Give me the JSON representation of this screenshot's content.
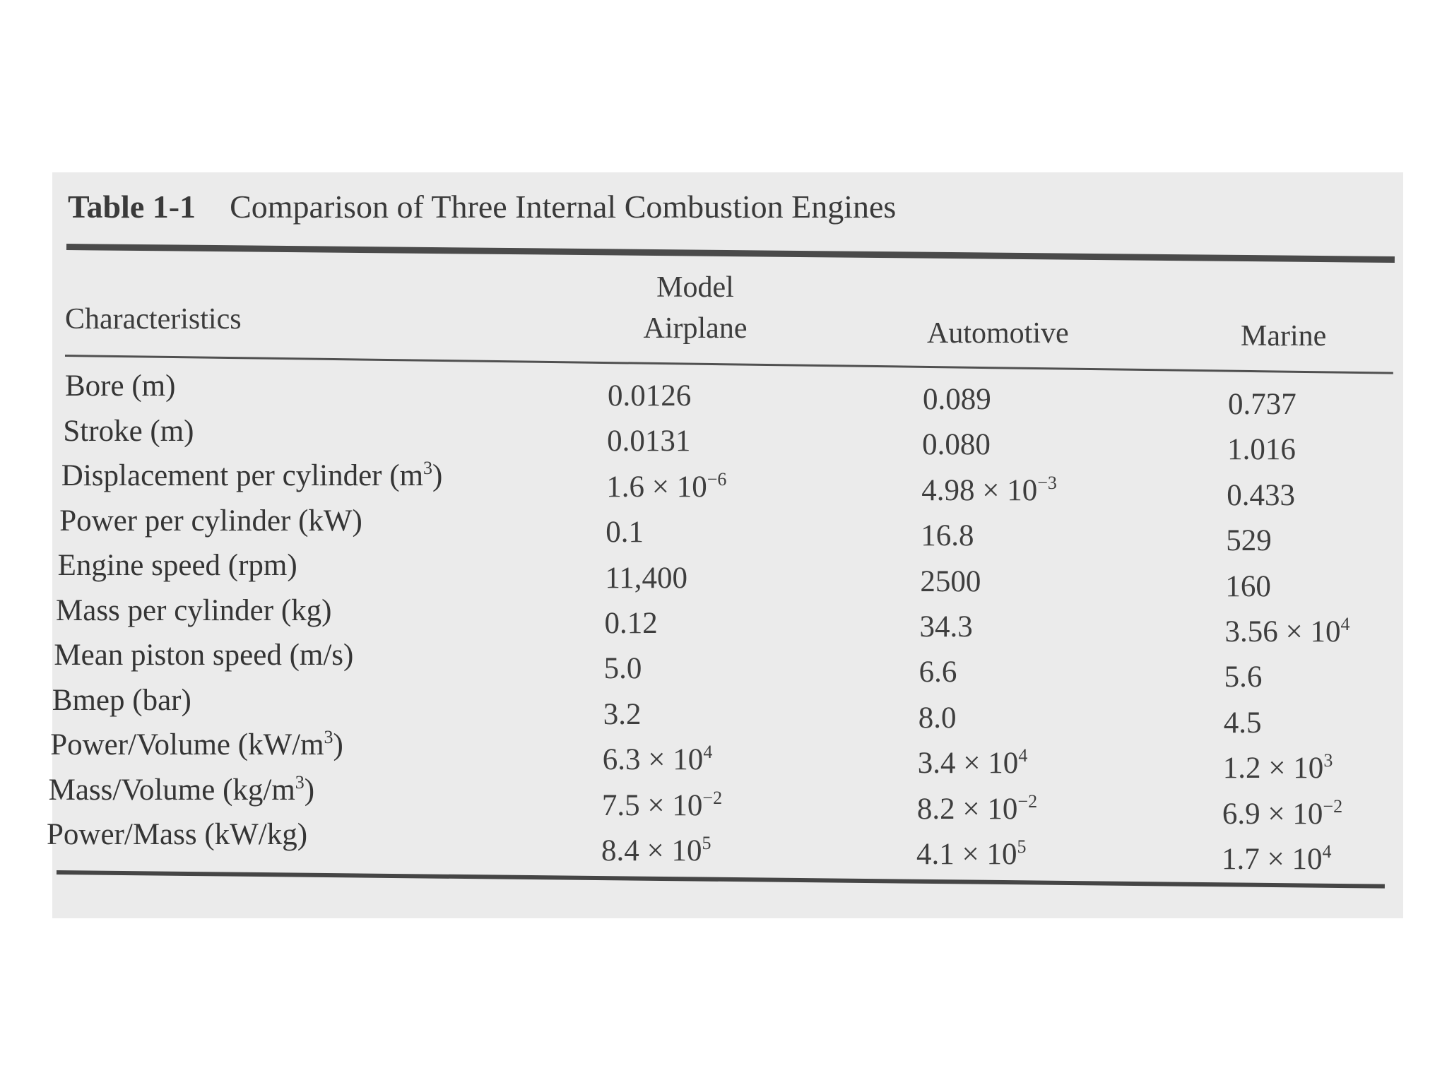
{
  "table": {
    "caption_label": "Table 1-1",
    "caption_title": "Comparison of Three Internal Combustion Engines",
    "headers": {
      "characteristics": "Characteristics",
      "model_airplane_line1": "Model",
      "model_airplane_line2": "Airplane",
      "automotive": "Automotive",
      "marine": "Marine"
    },
    "rows": [
      {
        "label": "Bore (m)",
        "airplane": "0.0126",
        "automotive": "0.089",
        "marine": "0.737"
      },
      {
        "label": "Stroke (m)",
        "airplane": "0.0131",
        "automotive": "0.080",
        "marine": "1.016"
      },
      {
        "label": "Displacement per cylinder (m",
        "label_sup": "3",
        "label_suffix": ")",
        "airplane": "1.6 × 10",
        "airplane_sup": "−6",
        "automotive": "4.98 × 10",
        "automotive_sup": "−3",
        "marine": "0.433"
      },
      {
        "label": "Power per cylinder (kW)",
        "airplane": "0.1",
        "automotive": "16.8",
        "marine": "529"
      },
      {
        "label": "Engine speed (rpm)",
        "airplane": "11,400",
        "automotive": "2500",
        "marine": "160"
      },
      {
        "label": "Mass per cylinder (kg)",
        "airplane": "0.12",
        "automotive": "34.3",
        "marine": "3.56 × 10",
        "marine_sup": "4"
      },
      {
        "label": "Mean piston speed (m/s)",
        "airplane": "5.0",
        "automotive": "6.6",
        "marine": "5.6"
      },
      {
        "label": "Bmep (bar)",
        "airplane": "3.2",
        "automotive": "8.0",
        "marine": "4.5"
      },
      {
        "label": "Power/Volume (kW/m",
        "label_sup": "3",
        "label_suffix": ")",
        "airplane": "6.3 × 10",
        "airplane_sup": "4",
        "automotive": "3.4 × 10",
        "automotive_sup": "4",
        "marine": "1.2 × 10",
        "marine_sup": "3"
      },
      {
        "label": "Mass/Volume (kg/m",
        "label_sup": "3",
        "label_suffix": ")",
        "airplane": "7.5 × 10",
        "airplane_sup": "−2",
        "automotive": "8.2 × 10",
        "automotive_sup": "−2",
        "marine": "6.9 × 10",
        "marine_sup": "−2"
      },
      {
        "label": "Power/Mass (kW/kg)",
        "airplane": "8.4 × 10",
        "airplane_sup": "5",
        "automotive": "4.1 × 10",
        "automotive_sup": "5",
        "marine": "1.7 × 10",
        "marine_sup": "4"
      }
    ]
  }
}
